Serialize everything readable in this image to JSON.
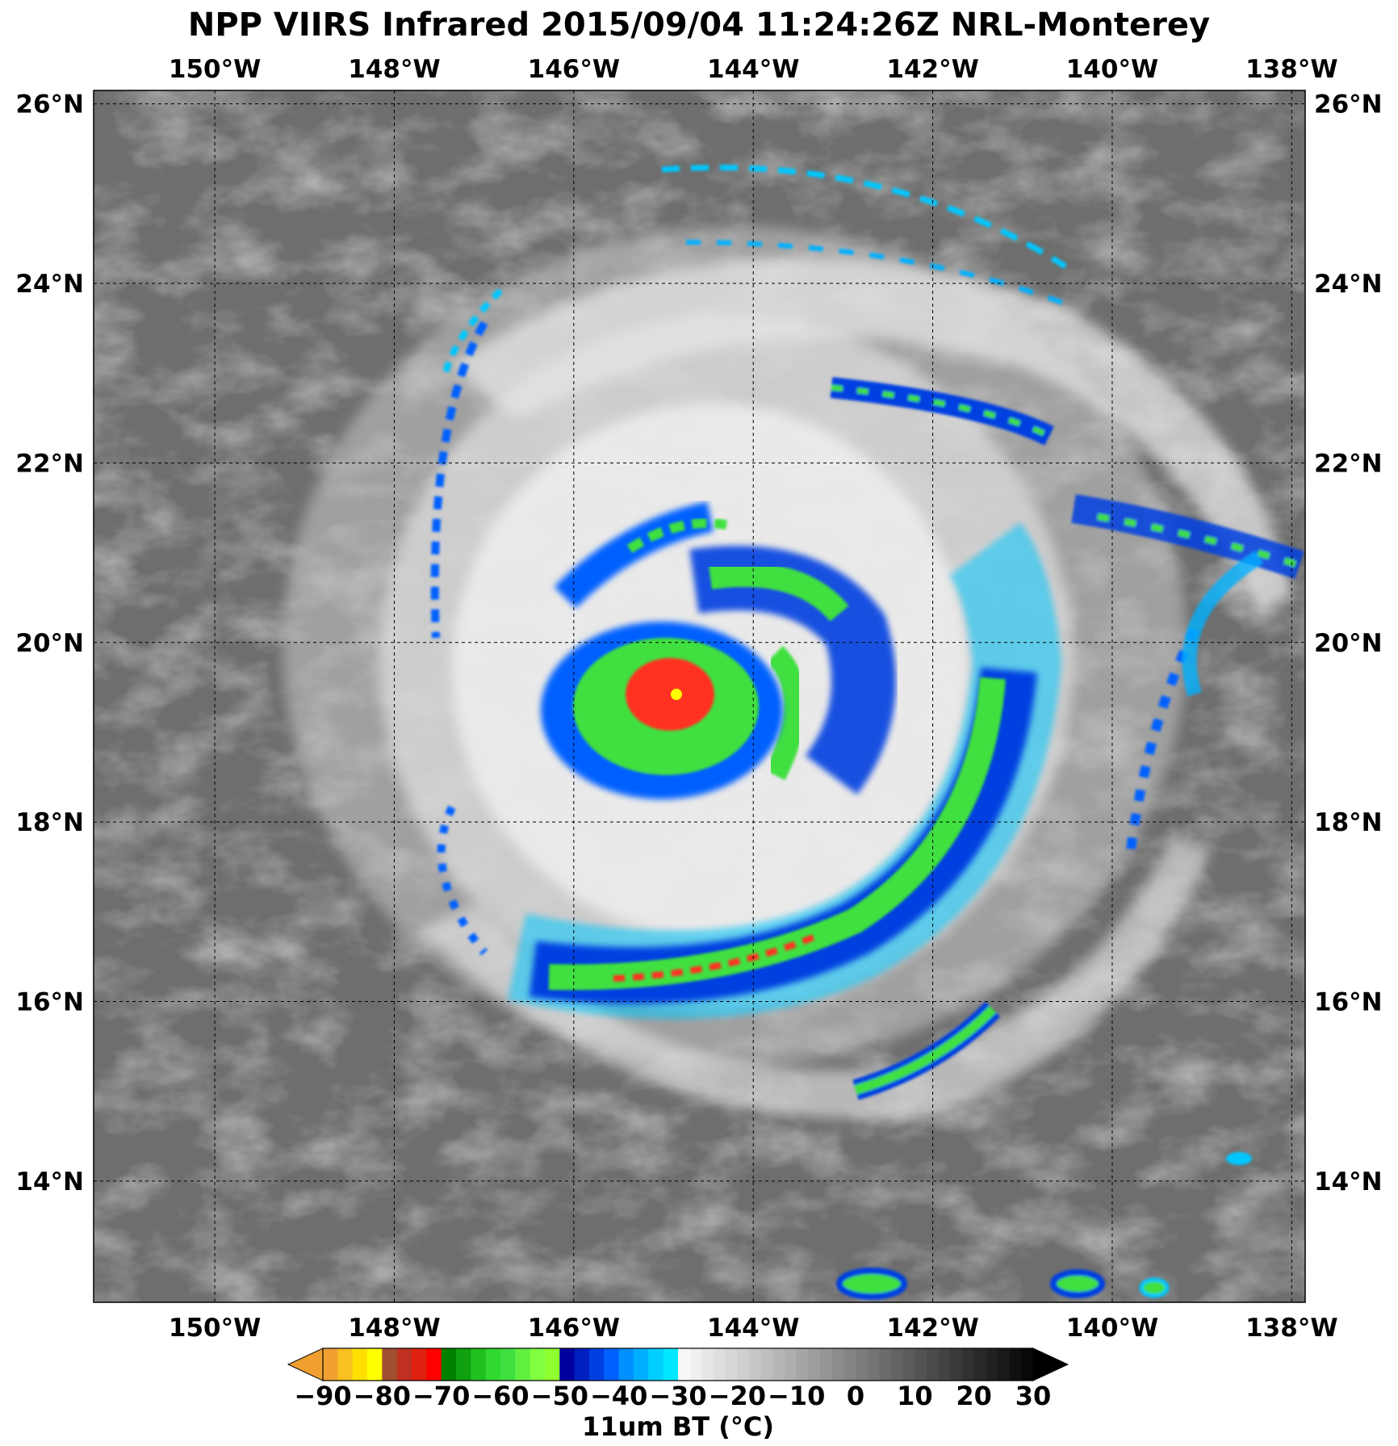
{
  "title": "NPP VIIRS Infrared 2015/09/04 11:24:26Z NRL-Monterey",
  "map": {
    "lon_range": [
      -151.35,
      -137.85
    ],
    "lat_range": [
      12.65,
      26.15
    ],
    "lon_ticks": [
      {
        "value": -150,
        "label": "150°W"
      },
      {
        "value": -148,
        "label": "148°W"
      },
      {
        "value": -146,
        "label": "146°W"
      },
      {
        "value": -144,
        "label": "144°W"
      },
      {
        "value": -142,
        "label": "142°W"
      },
      {
        "value": -140,
        "label": "140°W"
      },
      {
        "value": -138,
        "label": "138°W"
      }
    ],
    "lat_ticks": [
      {
        "value": 26,
        "label": "26°N"
      },
      {
        "value": 24,
        "label": "24°N"
      },
      {
        "value": 22,
        "label": "22°N"
      },
      {
        "value": 20,
        "label": "20°N"
      },
      {
        "value": 18,
        "label": "18°N"
      },
      {
        "value": 16,
        "label": "16°N"
      },
      {
        "value": 14,
        "label": "14°N"
      }
    ],
    "gridlines": true,
    "storm_center": {
      "lon": -144.9,
      "lat": 19.2
    }
  },
  "colorbar": {
    "label": "11um BT (°C)",
    "ticks": [
      {
        "value": -90,
        "label": "−90"
      },
      {
        "value": -80,
        "label": "−80"
      },
      {
        "value": -70,
        "label": "−70"
      },
      {
        "value": -60,
        "label": "−60"
      },
      {
        "value": -50,
        "label": "−50"
      },
      {
        "value": -40,
        "label": "−40"
      },
      {
        "value": -30,
        "label": "−30"
      },
      {
        "value": -20,
        "label": "−20"
      },
      {
        "value": -10,
        "label": "−10"
      },
      {
        "value": 0,
        "label": "0"
      },
      {
        "value": 10,
        "label": "10"
      },
      {
        "value": 20,
        "label": "20"
      },
      {
        "value": 30,
        "label": "30"
      }
    ],
    "range": [
      -90,
      30
    ],
    "segments": [
      {
        "from": -90,
        "to": -80,
        "colors": [
          "#f0a030",
          "#f8c020",
          "#ffe000",
          "#ffff00"
        ]
      },
      {
        "from": -80,
        "to": -70,
        "colors": [
          "#a05030",
          "#c03020",
          "#e02010",
          "#ff0000"
        ]
      },
      {
        "from": -70,
        "to": -60,
        "colors": [
          "#008000",
          "#10a010",
          "#20c020",
          "#30d830"
        ]
      },
      {
        "from": -60,
        "to": -50,
        "colors": [
          "#40e040",
          "#60f040",
          "#80ff40",
          "#90ff30"
        ]
      },
      {
        "from": -50,
        "to": -40,
        "colors": [
          "#0000a0",
          "#0020c0",
          "#0040e0",
          "#0060ff"
        ]
      },
      {
        "from": -40,
        "to": -30,
        "colors": [
          "#0090ff",
          "#00b0ff",
          "#00d0ff",
          "#00e8ff"
        ]
      },
      {
        "from": -30,
        "to": 30,
        "gray": [
          "#f8f8f8",
          "#080808"
        ]
      }
    ],
    "extend": {
      "low": "#f0a030",
      "high": "#000000"
    }
  },
  "colors": {
    "background_gray": "#6e6e6e",
    "cloud_white": "#f2f2f2",
    "cold_blue": "#0050f0",
    "cyan": "#00c8ff",
    "green": "#40e040",
    "red": "#ff3020",
    "yellow": "#ffff00"
  }
}
